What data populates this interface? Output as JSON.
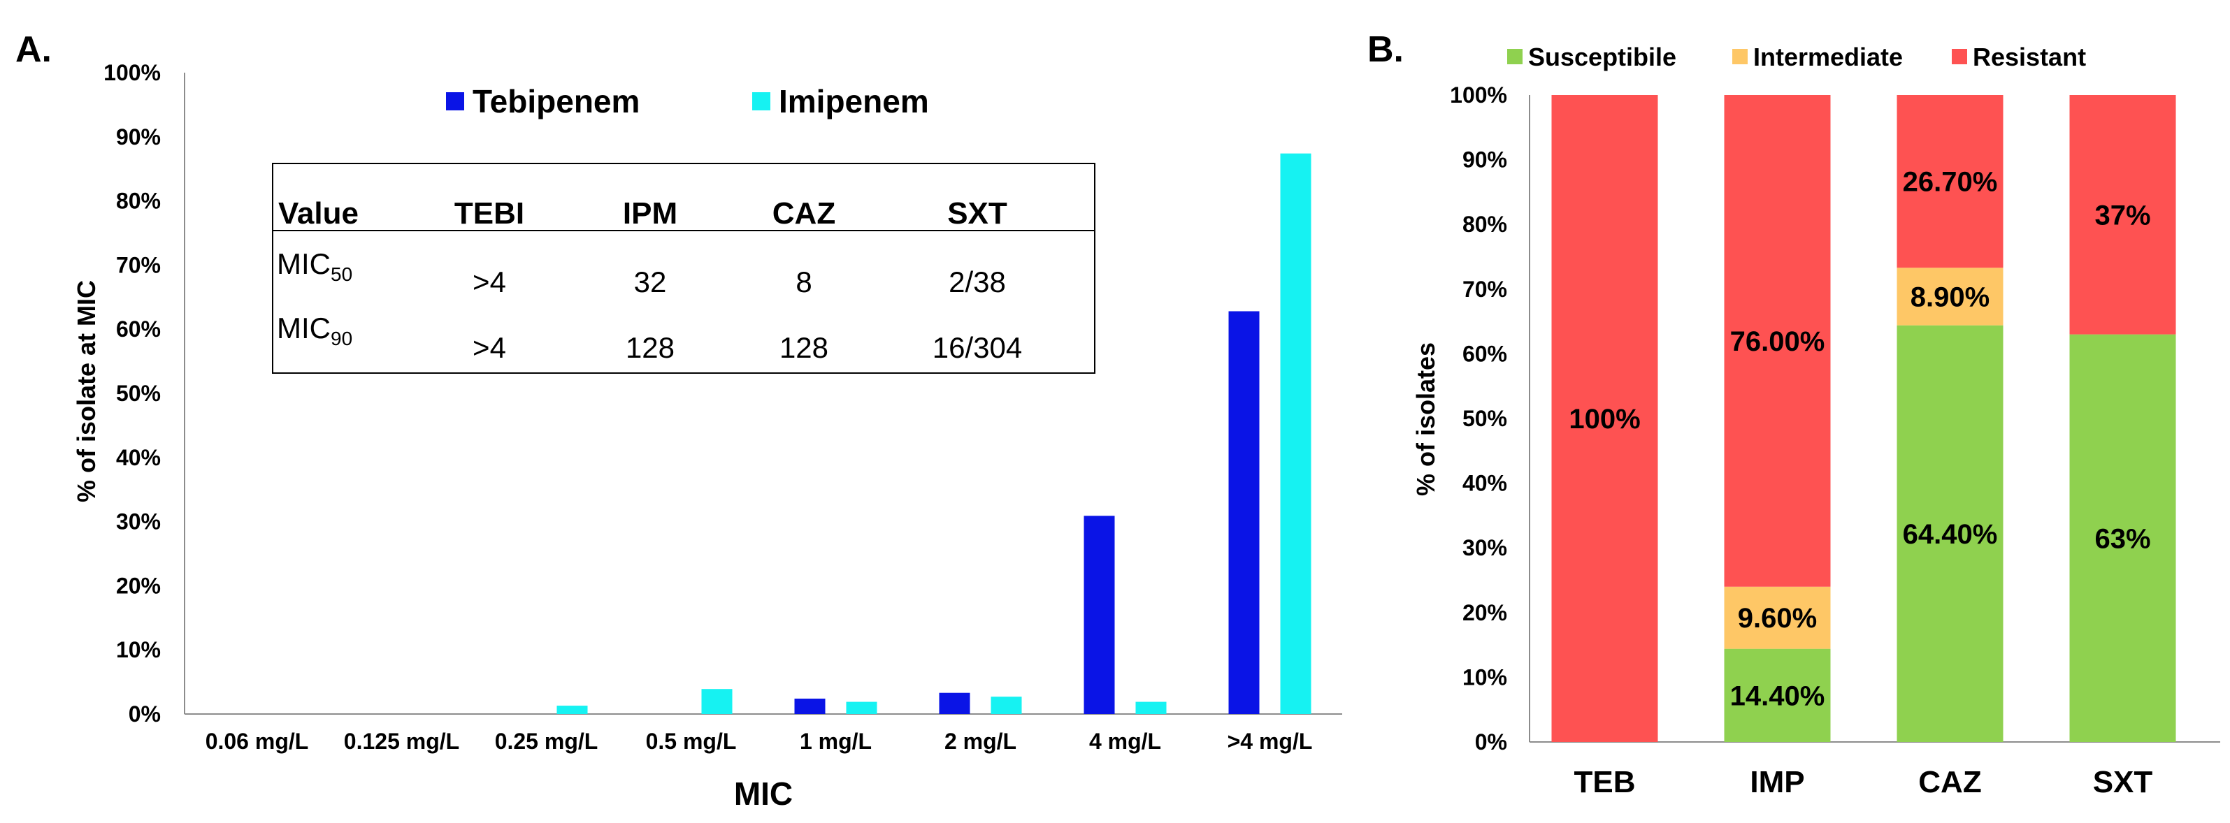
{
  "panelA": {
    "panel_label": "A.",
    "chart_data": {
      "type": "bar",
      "ylabel": "% of isolate at MIC",
      "xlabel": "MIC",
      "ylim": [
        0,
        100
      ],
      "yticks": [
        "0%",
        "10%",
        "20%",
        "30%",
        "40%",
        "50%",
        "60%",
        "70%",
        "80%",
        "90%",
        "100%"
      ],
      "categories": [
        "0.06 mg/L",
        "0.125 mg/L",
        "0.25 mg/L",
        "0.5 mg/L",
        "1 mg/L",
        "2 mg/L",
        "4 mg/L",
        ">4 mg/L"
      ],
      "series": [
        {
          "name": "Tebipenem",
          "color": "#0a14e6",
          "values": [
            0,
            0,
            0,
            0,
            2.4,
            3.3,
            30.9,
            62.8
          ]
        },
        {
          "name": "Imipenem",
          "color": "#16f2f2",
          "values": [
            0,
            0,
            1.3,
            3.9,
            1.9,
            2.7,
            1.9,
            87.4
          ]
        }
      ]
    },
    "table": {
      "headers": [
        "Value",
        "TEBI",
        "IPM",
        "CAZ",
        "SXT"
      ],
      "rows": [
        {
          "label": "MIC",
          "sub": "50",
          "values": [
            ">4",
            "32",
            "8",
            "2/38"
          ]
        },
        {
          "label": "MIC",
          "sub": "90",
          "values": [
            ">4",
            "128",
            "128",
            "16/304"
          ]
        }
      ]
    }
  },
  "panelB": {
    "panel_label": "B.",
    "chart_data": {
      "type": "bar",
      "stacked": true,
      "ylabel": "% of isolates",
      "xlabel": "",
      "ylim": [
        0,
        100
      ],
      "yticks": [
        "0%",
        "10%",
        "20%",
        "30%",
        "40%",
        "50%",
        "60%",
        "70%",
        "80%",
        "90%",
        "100%"
      ],
      "categories": [
        "TEB",
        "IMP",
        "CAZ",
        "SXT"
      ],
      "legend_position": "top",
      "series": [
        {
          "name": "Susceptibile",
          "color": "#8fd14f",
          "values": [
            0,
            14.4,
            64.4,
            63
          ],
          "labels": [
            "",
            "14.40%",
            "64.40%",
            "63%"
          ]
        },
        {
          "name": "Intermediate",
          "color": "#fec766",
          "values": [
            0,
            9.6,
            8.9,
            0
          ],
          "labels": [
            "",
            "9.60%",
            "8.90%",
            ""
          ]
        },
        {
          "name": "Resistant",
          "color": "#fe5252",
          "values": [
            100,
            76.0,
            26.7,
            37
          ],
          "labels": [
            "100%",
            "76.00%",
            "26.70%",
            "37%"
          ]
        }
      ]
    }
  }
}
